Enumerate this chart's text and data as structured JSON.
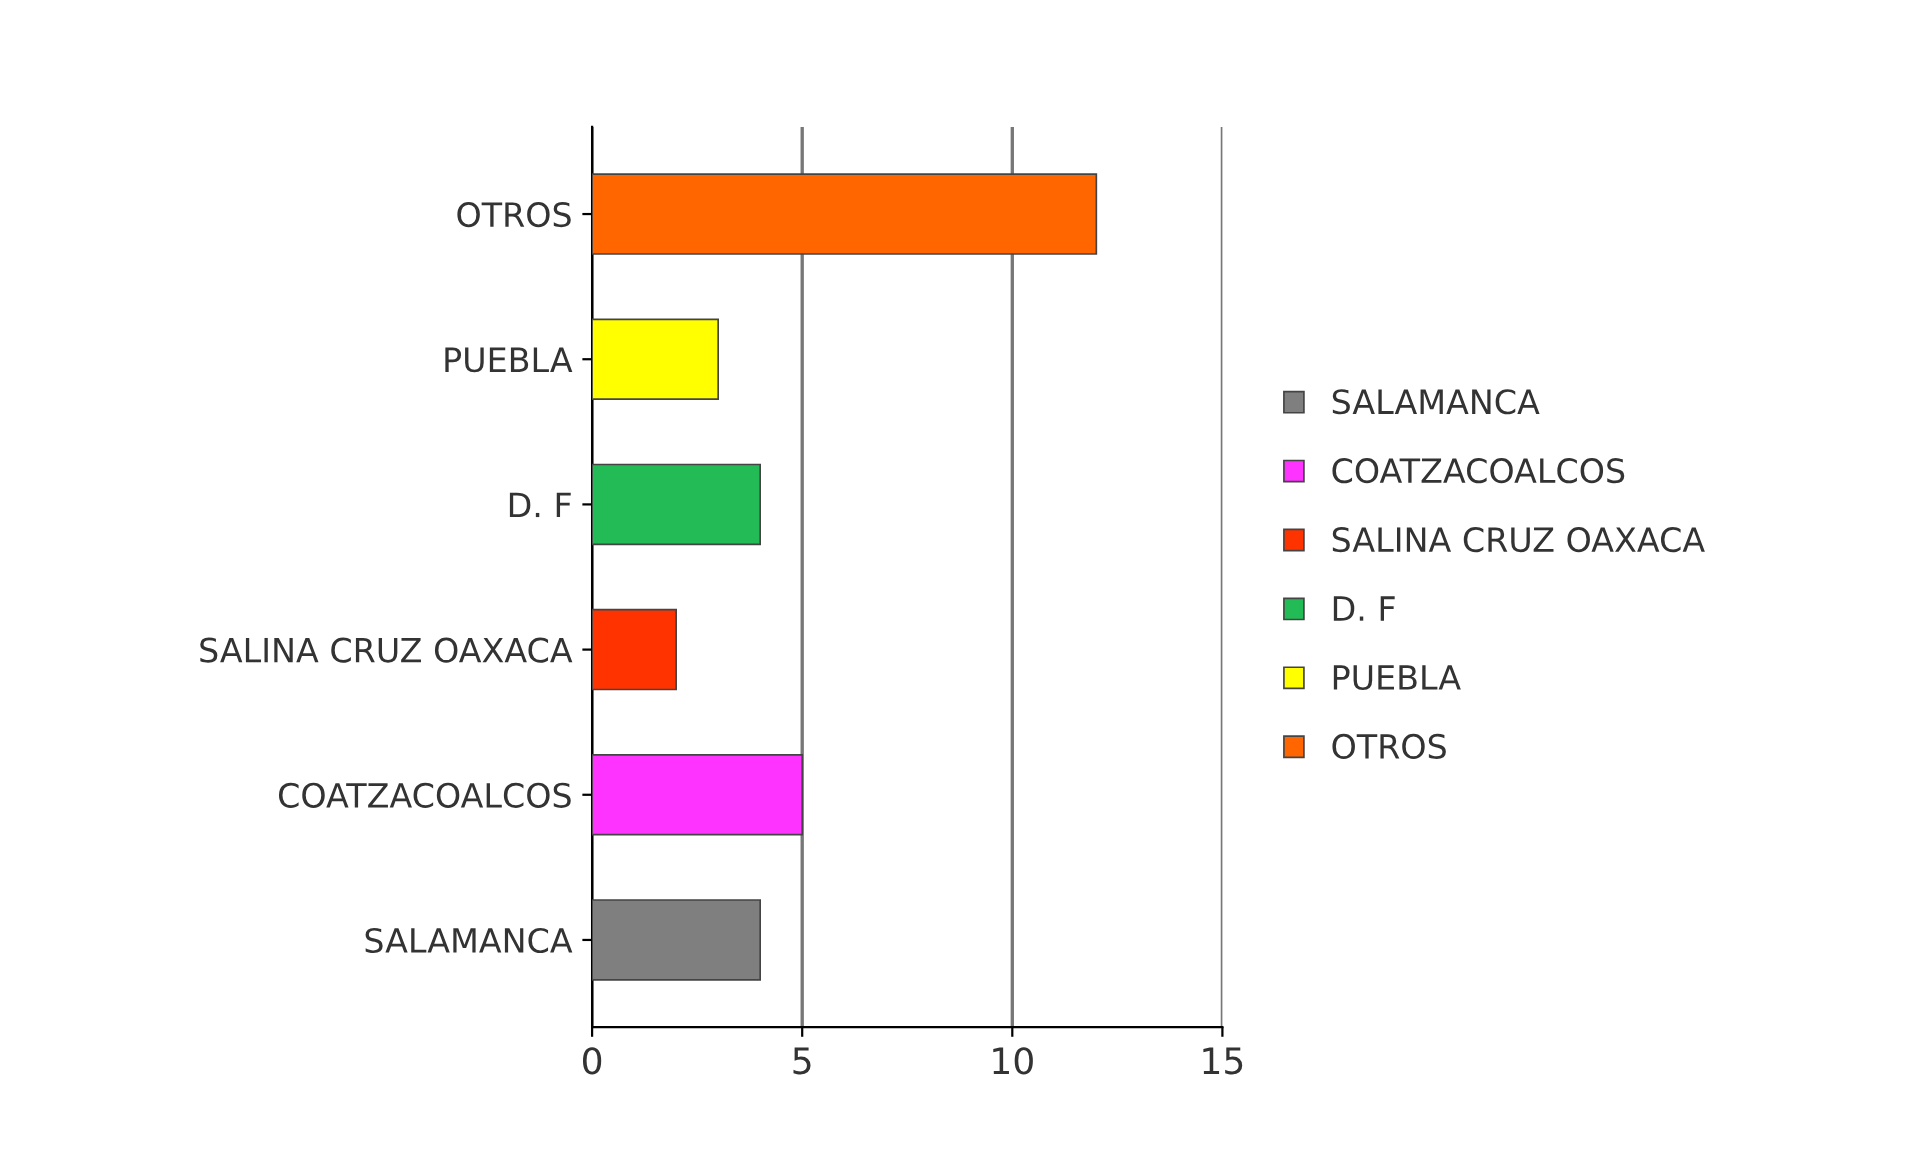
{
  "chart_data": {
    "type": "bar",
    "orientation": "horizontal",
    "categories": [
      "OTROS",
      "PUEBLA",
      "D. F",
      "SALINA CRUZ OAXACA",
      "COATZACOALCOS",
      "SALAMANCA"
    ],
    "series": [
      {
        "name": "SALAMANCA",
        "color": "#7f7f7f",
        "values": [
          null,
          null,
          null,
          null,
          null,
          4
        ]
      },
      {
        "name": "COATZACOALCOS",
        "color": "#ff33ff",
        "values": [
          null,
          null,
          null,
          null,
          5,
          null
        ]
      },
      {
        "name": "SALINA CRUZ OAXACA",
        "color": "#ff3300",
        "values": [
          null,
          null,
          null,
          2,
          null,
          null
        ]
      },
      {
        "name": "D. F",
        "color": "#22bb55",
        "values": [
          null,
          null,
          4,
          null,
          null,
          null
        ]
      },
      {
        "name": "PUEBLA",
        "color": "#ffff00",
        "values": [
          null,
          3,
          null,
          null,
          null,
          null
        ]
      },
      {
        "name": "OTROS",
        "color": "#ff6600",
        "values": [
          12,
          null,
          null,
          null,
          null,
          null
        ]
      }
    ],
    "xlim": [
      0,
      15
    ],
    "xticks": [
      0,
      5,
      10,
      15
    ],
    "grid": "x",
    "legend": "right"
  }
}
